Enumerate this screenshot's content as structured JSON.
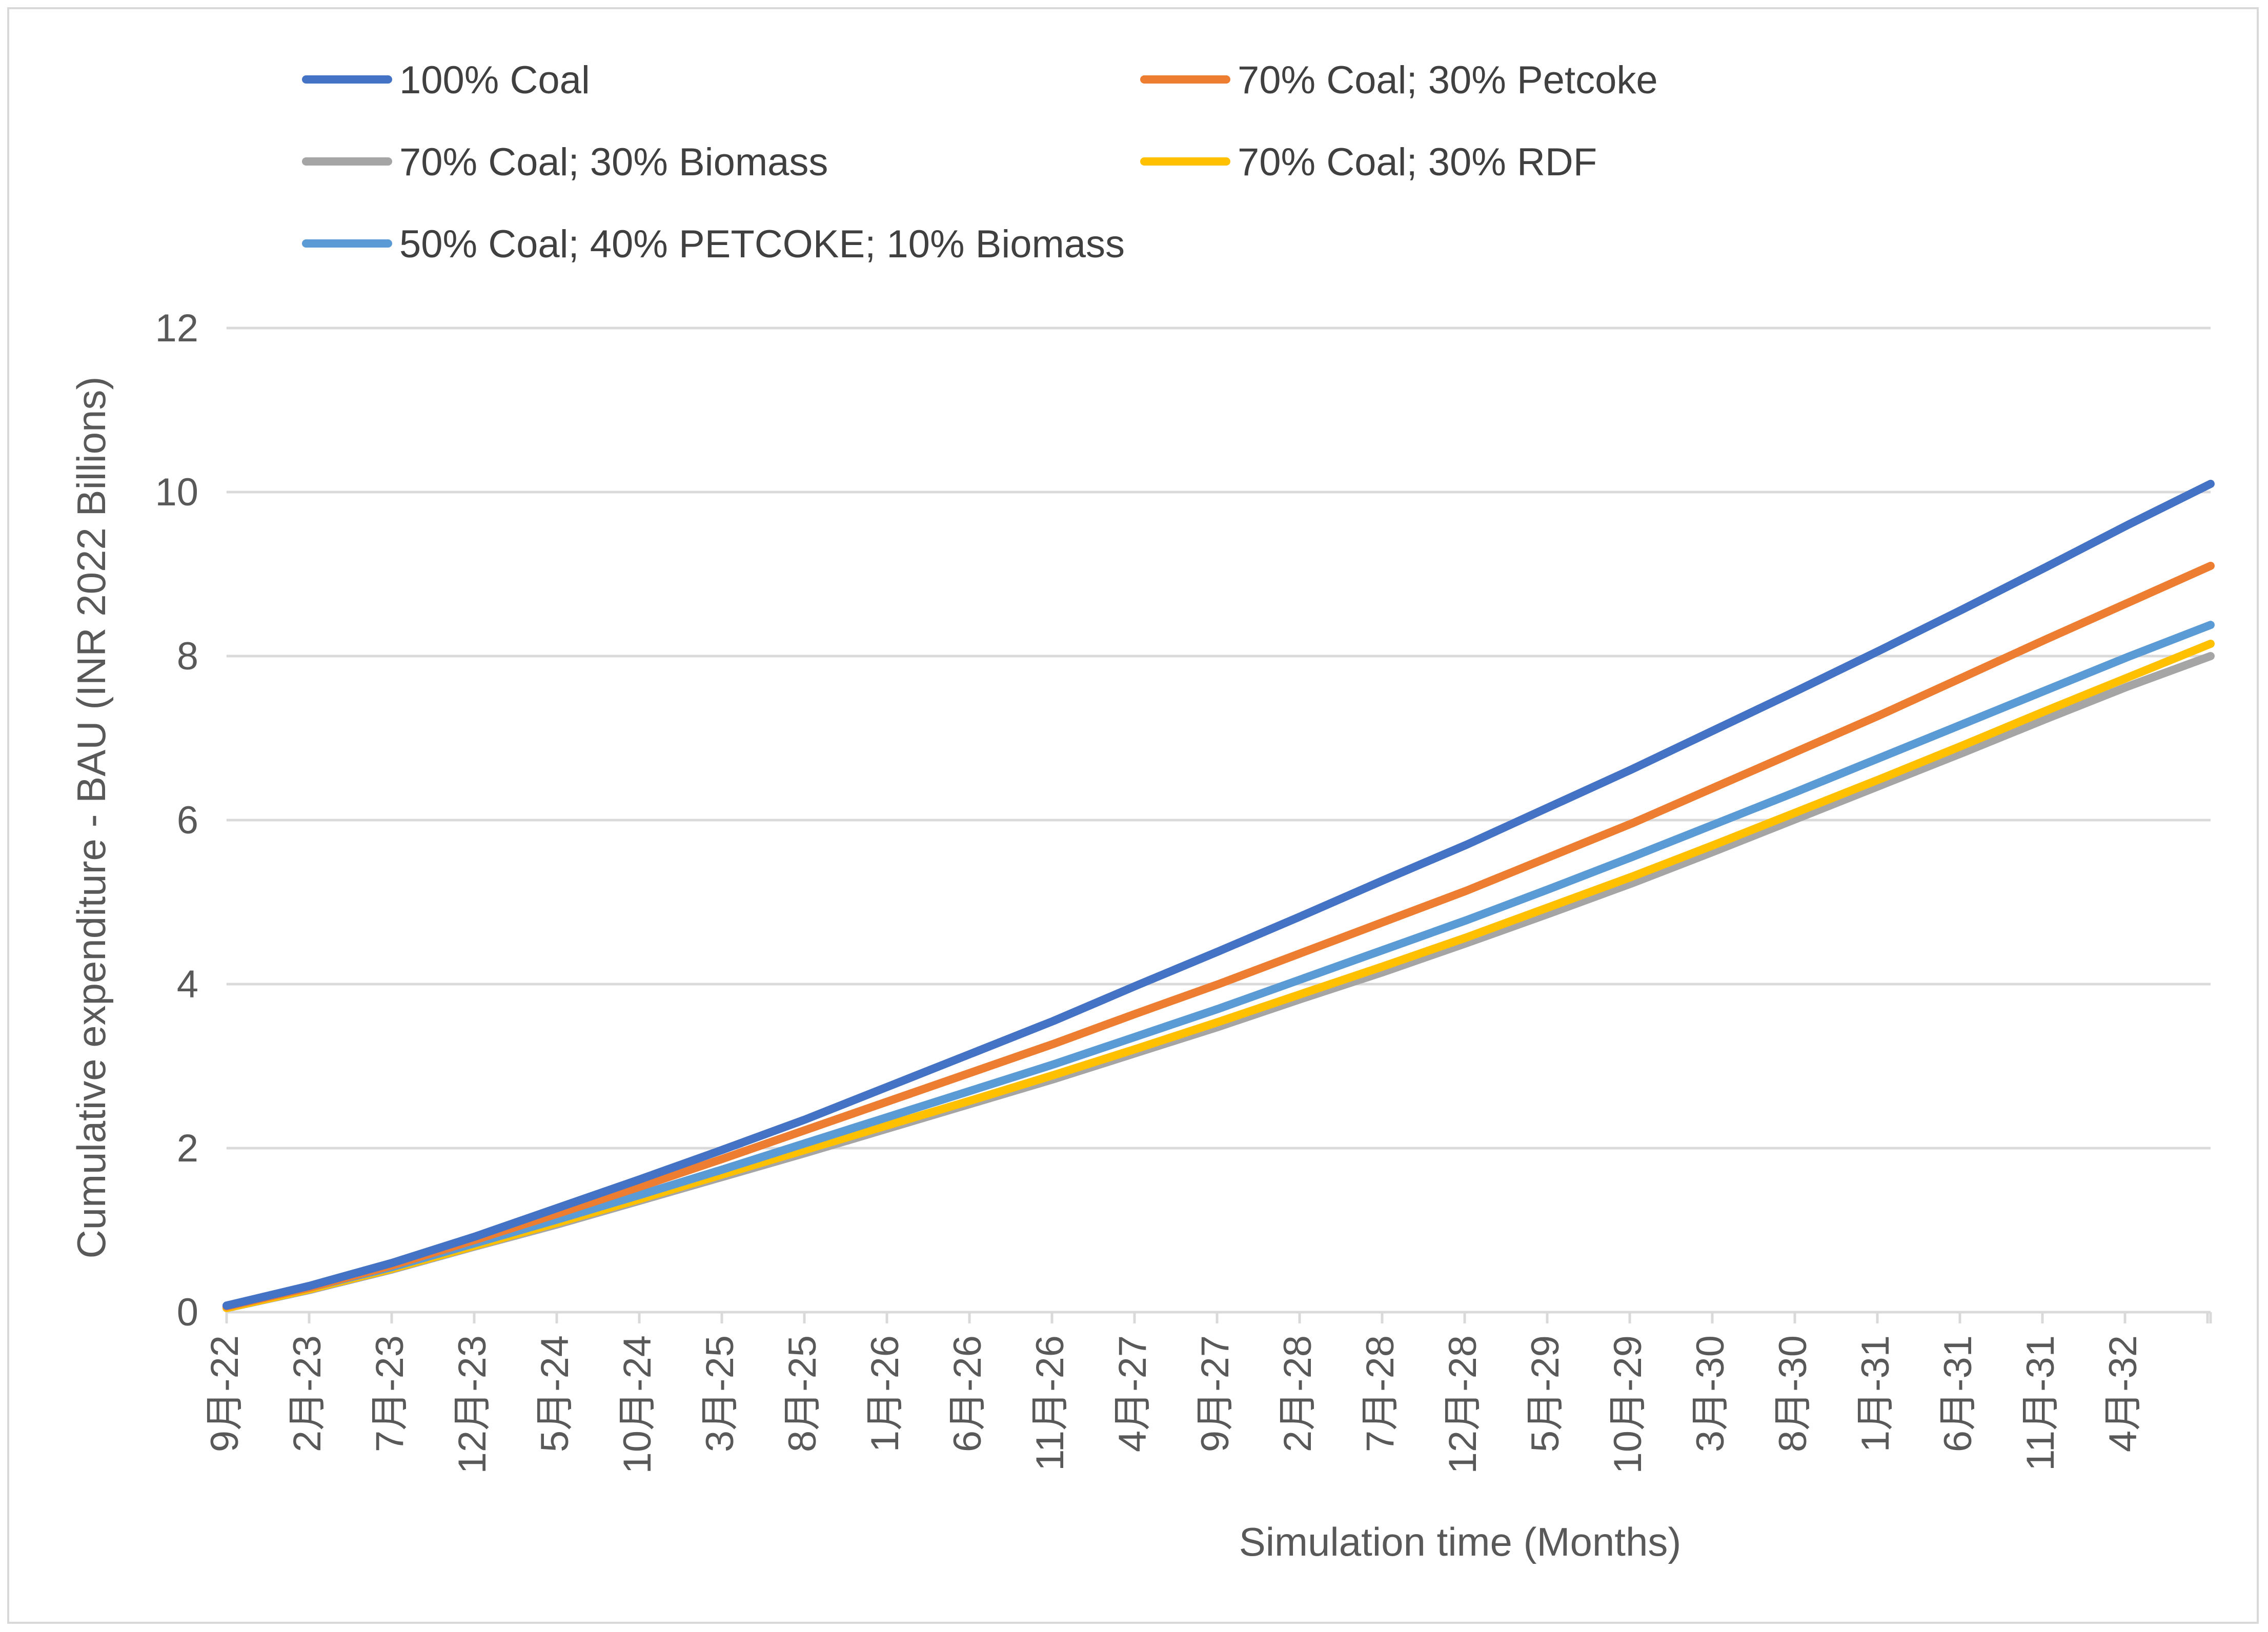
{
  "chart_data": {
    "type": "line",
    "title": "",
    "xlabel": "Simulation time (Months)",
    "ylabel": "Cumulative expenditure - BAU (INR 2022 Billions)",
    "ylim": [
      0,
      12
    ],
    "yticks": [
      0,
      2,
      4,
      6,
      8,
      10,
      12
    ],
    "grid": true,
    "legend_position": "top",
    "x_tick_labels": [
      "9月-22",
      "2月-23",
      "7月-23",
      "12月-23",
      "5月-24",
      "10月-24",
      "3月-25",
      "8月-25",
      "1月-26",
      "6月-26",
      "11月-26",
      "4月-27",
      "9月-27",
      "2月-28",
      "7月-28",
      "12月-28",
      "5月-29",
      "10月-29",
      "3月-30",
      "8月-30",
      "1月-31",
      "6月-31",
      "11月-31",
      "4月-32"
    ],
    "x_months_range": [
      0,
      120
    ],
    "series": [
      {
        "name": "100% Coal",
        "color": "#4472c4",
        "x": [
          0,
          5,
          10,
          15,
          20,
          25,
          30,
          35,
          40,
          45,
          50,
          55,
          60,
          65,
          70,
          75,
          80,
          85,
          90,
          95,
          100,
          105,
          110,
          115,
          120
        ],
        "values": [
          0.08,
          0.32,
          0.6,
          0.92,
          1.27,
          1.62,
          1.98,
          2.35,
          2.75,
          3.15,
          3.55,
          3.98,
          4.4,
          4.83,
          5.27,
          5.7,
          6.16,
          6.62,
          7.1,
          7.58,
          8.07,
          8.57,
          9.08,
          9.6,
          10.1
        ]
      },
      {
        "name": "70% Coal; 30% Petcoke",
        "color": "#ed7d31",
        "x": [
          0,
          5,
          10,
          15,
          20,
          25,
          30,
          35,
          40,
          45,
          50,
          55,
          60,
          65,
          70,
          75,
          80,
          85,
          90,
          95,
          100,
          105,
          110,
          115,
          120
        ],
        "values": [
          0.07,
          0.3,
          0.57,
          0.88,
          1.2,
          1.53,
          1.87,
          2.22,
          2.57,
          2.92,
          3.27,
          3.64,
          4.0,
          4.38,
          4.76,
          5.14,
          5.55,
          5.96,
          6.4,
          6.84,
          7.28,
          7.74,
          8.2,
          8.65,
          9.1
        ]
      },
      {
        "name": "70% Coal; 30% Biomass",
        "color": "#a5a5a5",
        "x": [
          0,
          5,
          10,
          15,
          20,
          25,
          30,
          35,
          40,
          45,
          50,
          55,
          60,
          65,
          70,
          75,
          80,
          85,
          90,
          95,
          100,
          105,
          110,
          115,
          120
        ],
        "values": [
          0.05,
          0.27,
          0.52,
          0.8,
          1.07,
          1.36,
          1.65,
          1.94,
          2.24,
          2.54,
          2.84,
          3.16,
          3.48,
          3.82,
          4.15,
          4.5,
          4.86,
          5.23,
          5.62,
          6.02,
          6.42,
          6.82,
          7.23,
          7.63,
          8.0
        ]
      },
      {
        "name": "70% Coal; 30% RDF",
        "color": "#ffc000",
        "x": [
          0,
          5,
          10,
          15,
          20,
          25,
          30,
          35,
          40,
          45,
          50,
          55,
          60,
          65,
          70,
          75,
          80,
          85,
          90,
          95,
          100,
          105,
          110,
          115,
          120
        ],
        "values": [
          0.05,
          0.28,
          0.53,
          0.81,
          1.09,
          1.38,
          1.68,
          1.98,
          2.28,
          2.58,
          2.89,
          3.21,
          3.54,
          3.88,
          4.22,
          4.57,
          4.94,
          5.31,
          5.7,
          6.1,
          6.5,
          6.91,
          7.33,
          7.74,
          8.15
        ]
      },
      {
        "name": "50% Coal; 40% PETCOKE; 10% Biomass",
        "color": "#5b9bd5",
        "x": [
          0,
          5,
          10,
          15,
          20,
          25,
          30,
          35,
          40,
          45,
          50,
          55,
          60,
          65,
          70,
          75,
          80,
          85,
          90,
          95,
          100,
          105,
          110,
          115,
          120
        ],
        "values": [
          0.08,
          0.3,
          0.55,
          0.84,
          1.13,
          1.43,
          1.74,
          2.06,
          2.38,
          2.7,
          3.02,
          3.36,
          3.7,
          4.06,
          4.42,
          4.78,
          5.16,
          5.55,
          5.95,
          6.35,
          6.76,
          7.17,
          7.58,
          7.99,
          8.38
        ]
      }
    ]
  }
}
